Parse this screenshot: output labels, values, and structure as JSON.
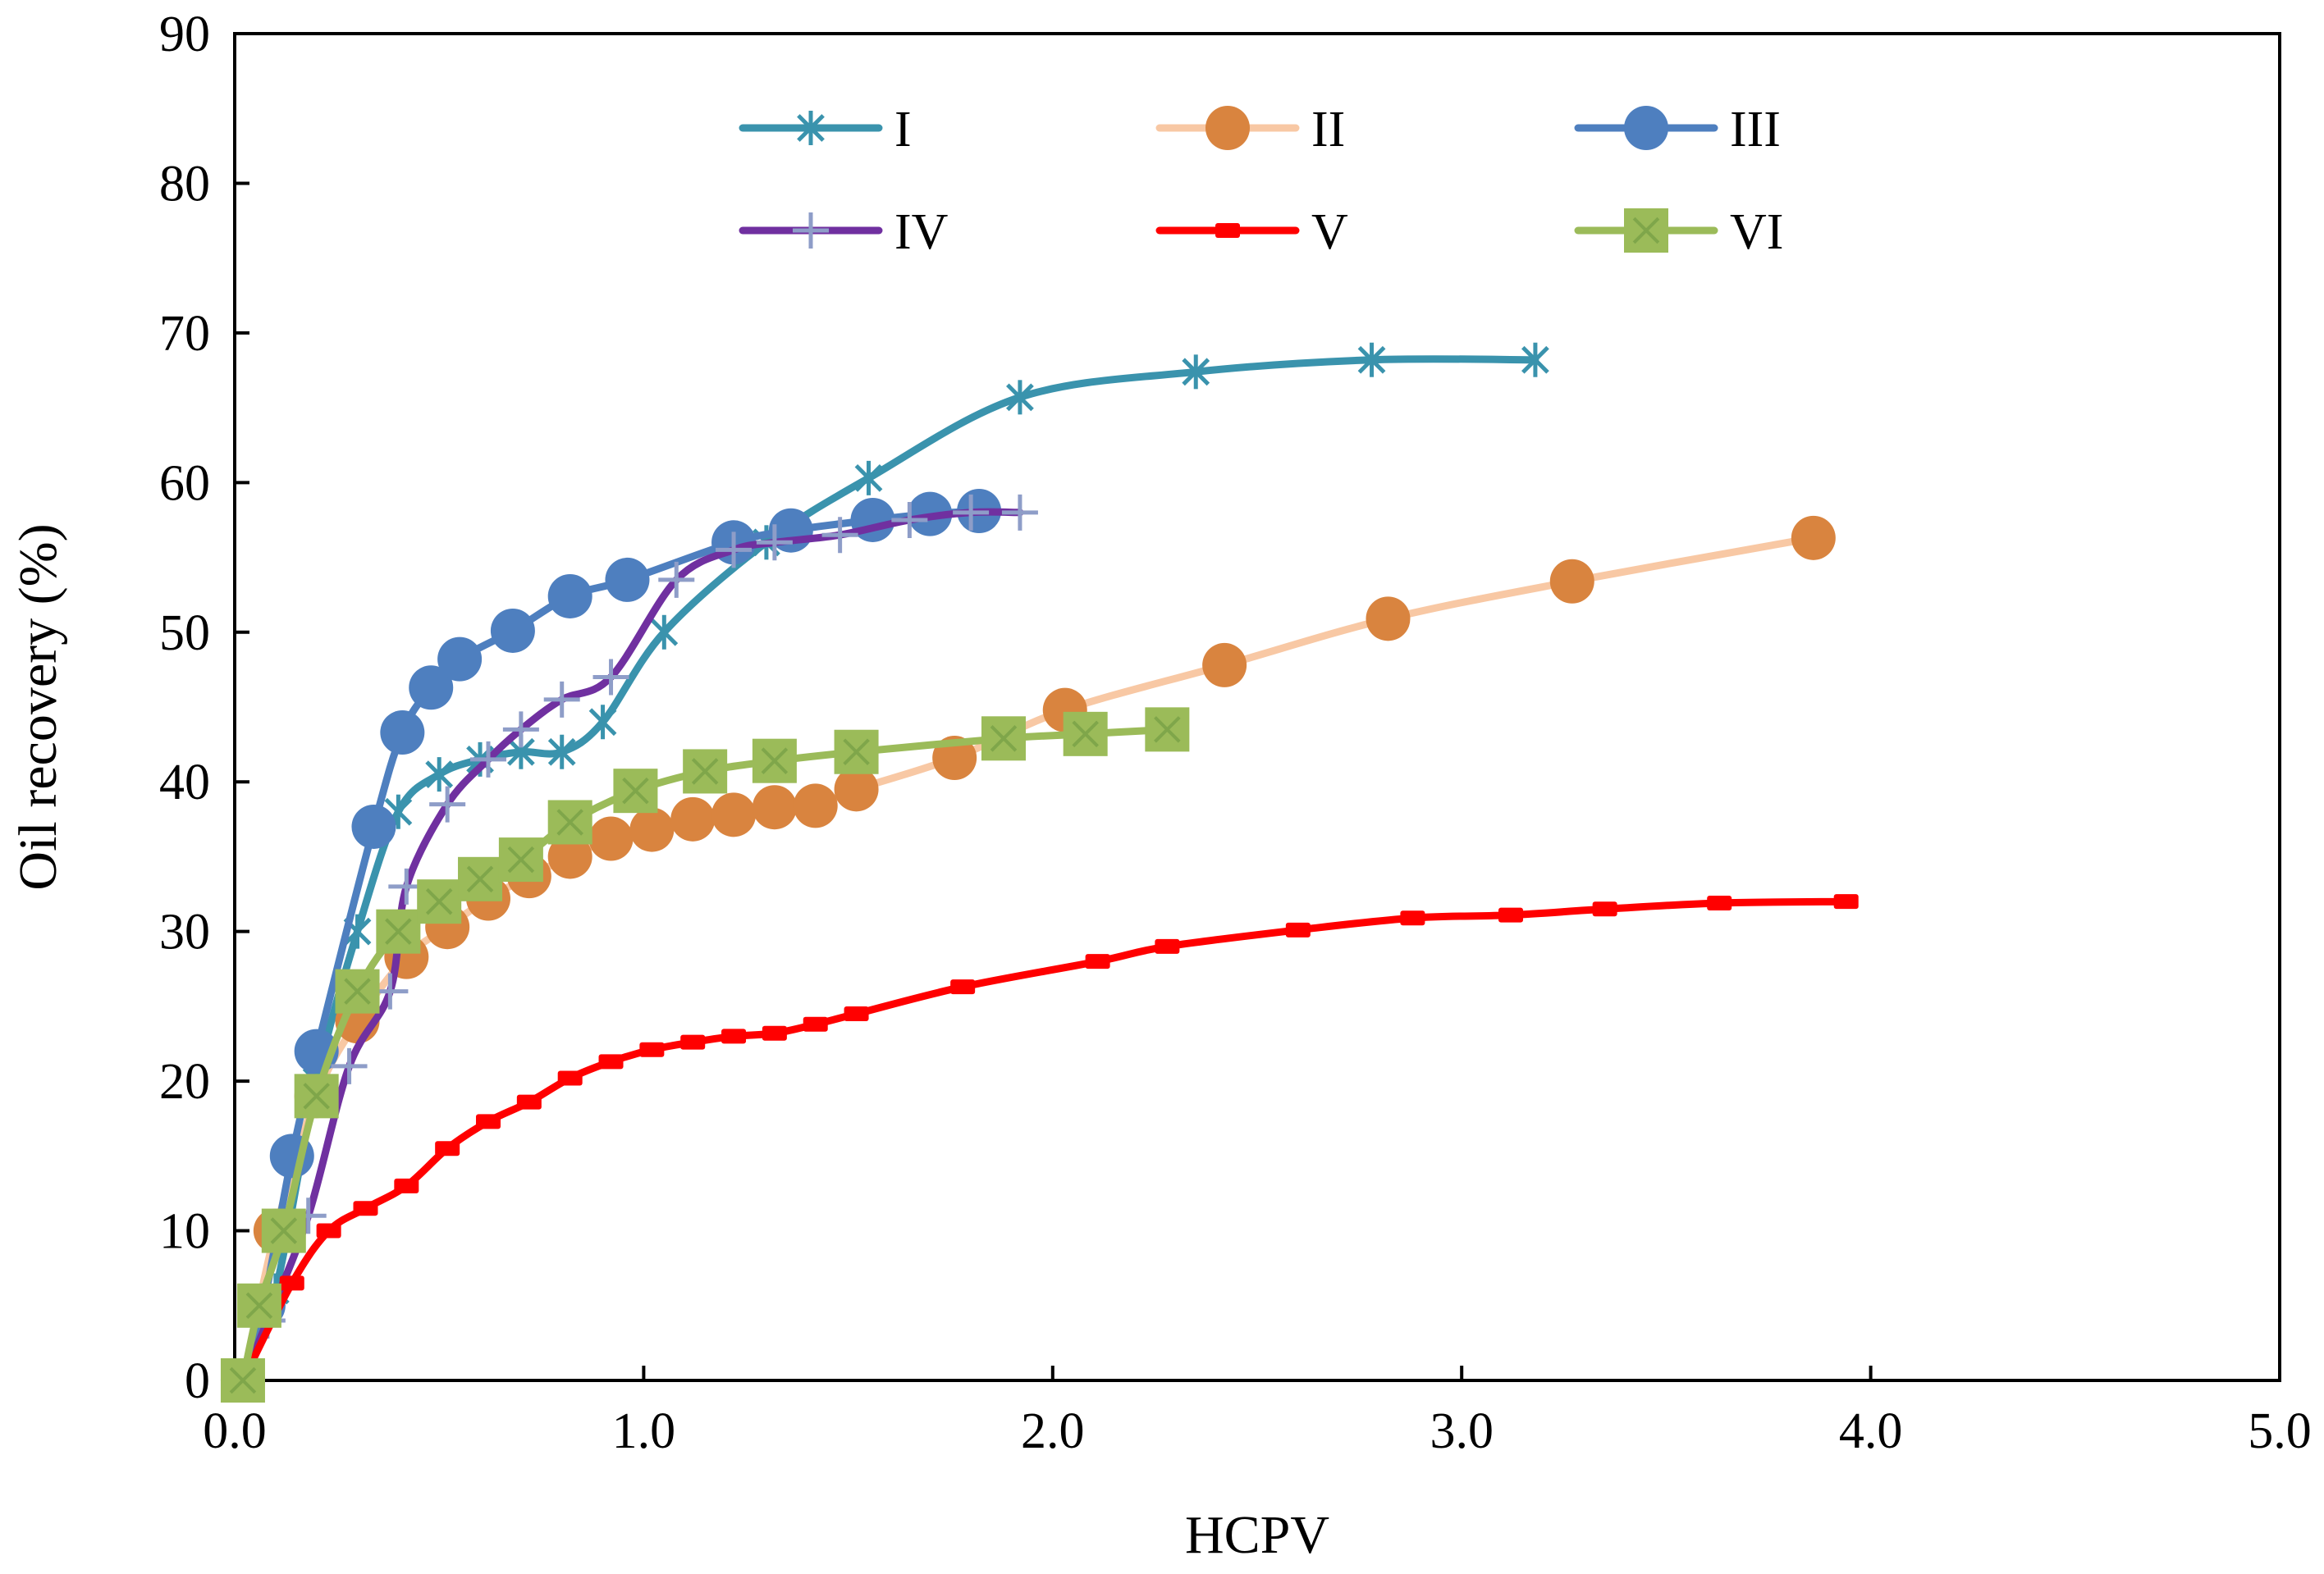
{
  "chart_data": {
    "type": "line",
    "title": "",
    "xlabel": "HCPV",
    "ylabel": "Oil recovery (%)",
    "xlim": [
      0,
      5
    ],
    "ylim": [
      0,
      90
    ],
    "xticks": [
      0,
      1,
      2,
      3,
      4,
      5
    ],
    "xtick_labels": [
      "0.0",
      "1.0",
      "2.0",
      "3.0",
      "4.0",
      "5.0"
    ],
    "yticks": [
      0,
      10,
      20,
      30,
      40,
      50,
      60,
      70,
      80,
      90
    ],
    "ytick_labels": [
      "0",
      "10",
      "20",
      "30",
      "40",
      "50",
      "60",
      "70",
      "80",
      "90"
    ],
    "grid": false,
    "legend_position": "top",
    "series": [
      {
        "name": "I",
        "color": "#3a93ad",
        "marker": "asterisk",
        "x": [
          0.02,
          0.1,
          0.2,
          0.3,
          0.4,
          0.5,
          0.6,
          0.7,
          0.8,
          0.9,
          1.05,
          1.3,
          1.55,
          1.92,
          2.35,
          2.78,
          3.18
        ],
        "y": [
          0,
          6,
          20,
          30,
          38,
          40.5,
          41.5,
          42,
          42,
          44,
          50,
          56,
          60.3,
          65.7,
          67.4,
          68.2,
          68.2
        ]
      },
      {
        "name": "II",
        "color": "#f8c8a4",
        "marker_color": "#d9843f",
        "marker": "circle",
        "x": [
          0.02,
          0.1,
          0.2,
          0.3,
          0.42,
          0.52,
          0.62,
          0.72,
          0.82,
          0.92,
          1.02,
          1.12,
          1.22,
          1.32,
          1.42,
          1.52,
          1.76,
          2.03,
          2.42,
          2.82,
          3.27,
          3.86
        ],
        "y": [
          0,
          10,
          19,
          24,
          28.3,
          30.3,
          32.2,
          33.7,
          35,
          36.2,
          36.8,
          37.5,
          37.8,
          38.3,
          38.4,
          39.5,
          41.6,
          44.8,
          47.8,
          50.9,
          53.4,
          56.3
        ]
      },
      {
        "name": "III",
        "color": "#4e7fbf",
        "marker": "circle",
        "x": [
          0.02,
          0.07,
          0.14,
          0.2,
          0.34,
          0.41,
          0.48,
          0.55,
          0.68,
          0.82,
          0.96,
          1.22,
          1.36,
          1.56,
          1.7,
          1.82
        ],
        "y": [
          0,
          5,
          15,
          22,
          37,
          43.3,
          46.3,
          48.2,
          50.1,
          52.4,
          53.5,
          56,
          56.8,
          57.5,
          57.9,
          58.1
        ]
      },
      {
        "name": "IV",
        "color": "#7030a0",
        "marker_color": "#8e9dc8",
        "marker": "plus",
        "x": [
          0.02,
          0.08,
          0.18,
          0.28,
          0.38,
          0.42,
          0.52,
          0.62,
          0.7,
          0.8,
          0.92,
          1.08,
          1.22,
          1.32,
          1.48,
          1.65,
          1.8,
          1.92
        ],
        "y": [
          0,
          4,
          11,
          21,
          26,
          33,
          38.5,
          41.5,
          43.5,
          45.5,
          47,
          53.5,
          55.5,
          56,
          56.5,
          57.5,
          58,
          58
        ]
      },
      {
        "name": "V",
        "color": "#ff0000",
        "marker": "dash",
        "x": [
          0.02,
          0.14,
          0.23,
          0.32,
          0.42,
          0.52,
          0.62,
          0.72,
          0.82,
          0.92,
          1.02,
          1.12,
          1.22,
          1.32,
          1.42,
          1.52,
          1.78,
          2.11,
          2.28,
          2.6,
          2.88,
          3.12,
          3.35,
          3.63,
          3.94
        ],
        "y": [
          0,
          6.5,
          10,
          11.5,
          13,
          15.5,
          17.3,
          18.6,
          20.2,
          21.3,
          22.1,
          22.6,
          23,
          23.2,
          23.8,
          24.5,
          26.3,
          28,
          29,
          30.1,
          30.9,
          31.1,
          31.5,
          31.9,
          32
        ]
      },
      {
        "name": "VI",
        "color": "#9bbb59",
        "marker": "square-x",
        "x": [
          0.02,
          0.06,
          0.12,
          0.2,
          0.3,
          0.4,
          0.5,
          0.6,
          0.7,
          0.82,
          0.98,
          1.15,
          1.32,
          1.52,
          1.88,
          2.08,
          2.28
        ],
        "y": [
          0,
          5,
          10,
          19,
          26,
          30,
          32,
          33.5,
          34.8,
          37.3,
          39.4,
          40.7,
          41.4,
          42,
          42.9,
          43.2,
          43.5
        ]
      }
    ]
  }
}
